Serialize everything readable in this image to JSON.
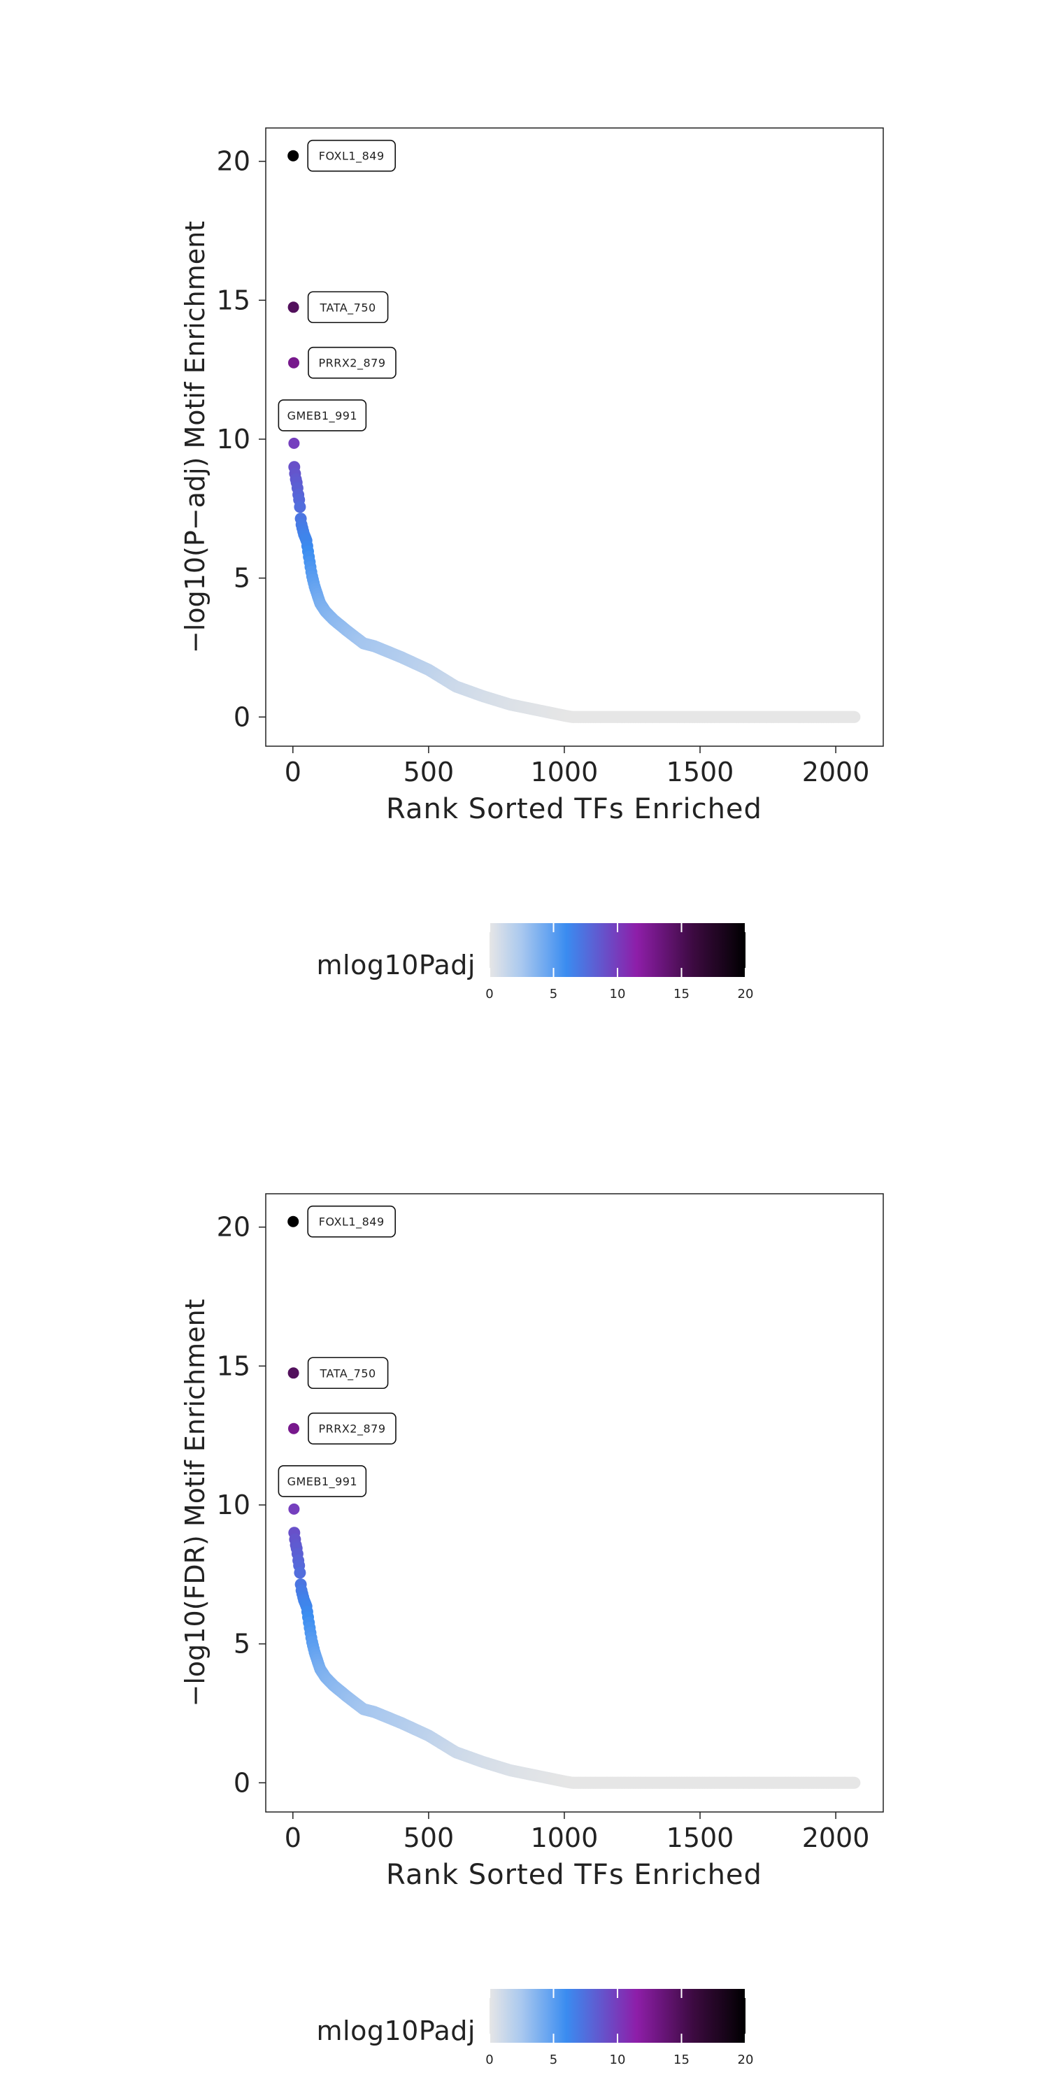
{
  "chart_data": [
    {
      "type": "scatter",
      "title": "",
      "xlabel": "Rank Sorted TFs Enriched",
      "ylabel": "−log10(P−adj) Motif Enrichment",
      "xlim": [
        -100,
        2175
      ],
      "ylim": [
        -1.05,
        21.2
      ],
      "xticks": [
        0,
        500,
        1000,
        1500,
        2000
      ],
      "yticks": [
        0,
        5,
        10,
        15,
        20
      ],
      "color_scale": {
        "label": "mlog10Padj",
        "ticks": [
          0,
          5,
          10,
          15,
          20
        ],
        "colors": [
          "#e6e6e6",
          "#a9c8ef",
          "#3a8cf0",
          "#8e1ea9",
          "#3b0a3f",
          "#000000"
        ]
      },
      "labeled_points": [
        {
          "label": "FOXL1_849",
          "rank": 1,
          "value": 20.2
        },
        {
          "label": "TATA_750",
          "rank": 2,
          "value": 14.75
        },
        {
          "label": "PRRX2_879",
          "rank": 3,
          "value": 12.75
        },
        {
          "label": "GMEB1_991",
          "rank": 4,
          "value": 9.85
        }
      ],
      "curve": {
        "ranks": [
          5,
          10,
          15,
          20,
          25,
          30,
          40,
          50,
          60,
          70,
          80,
          100,
          120,
          150,
          200,
          260,
          300,
          400,
          500,
          600,
          700,
          800,
          900,
          1000,
          1030,
          1500,
          2000,
          2070
        ],
        "values": [
          9.0,
          8.6,
          8.4,
          8.0,
          7.7,
          7.0,
          6.6,
          6.35,
          5.7,
          5.1,
          4.7,
          4.1,
          3.8,
          3.5,
          3.1,
          2.65,
          2.55,
          2.15,
          1.7,
          1.1,
          0.75,
          0.45,
          0.25,
          0.05,
          0.0,
          0.0,
          0.0,
          0.0
        ]
      }
    },
    {
      "type": "scatter",
      "title": "",
      "xlabel": "Rank Sorted TFs Enriched",
      "ylabel": "−log10(FDR) Motif Enrichment",
      "xlim": [
        -100,
        2175
      ],
      "ylim": [
        -1.05,
        21.2
      ],
      "xticks": [
        0,
        500,
        1000,
        1500,
        2000
      ],
      "yticks": [
        0,
        5,
        10,
        15,
        20
      ],
      "color_scale": {
        "label": "mlog10Padj",
        "ticks": [
          0,
          5,
          10,
          15,
          20
        ],
        "colors": [
          "#e6e6e6",
          "#a9c8ef",
          "#3a8cf0",
          "#8e1ea9",
          "#3b0a3f",
          "#000000"
        ]
      },
      "labeled_points": [
        {
          "label": "FOXL1_849",
          "rank": 1,
          "value": 20.2
        },
        {
          "label": "TATA_750",
          "rank": 2,
          "value": 14.75
        },
        {
          "label": "PRRX2_879",
          "rank": 3,
          "value": 12.75
        },
        {
          "label": "GMEB1_991",
          "rank": 4,
          "value": 9.85
        }
      ],
      "curve": {
        "ranks": [
          5,
          10,
          15,
          20,
          25,
          30,
          40,
          50,
          60,
          70,
          80,
          100,
          120,
          150,
          200,
          260,
          300,
          400,
          500,
          600,
          700,
          800,
          900,
          1000,
          1030,
          1500,
          2000,
          2070
        ],
        "values": [
          9.0,
          8.6,
          8.4,
          8.0,
          7.7,
          7.0,
          6.6,
          6.35,
          5.7,
          5.1,
          4.7,
          4.1,
          3.8,
          3.5,
          3.1,
          2.65,
          2.55,
          2.15,
          1.7,
          1.1,
          0.75,
          0.45,
          0.25,
          0.05,
          0.0,
          0.0,
          0.0,
          0.0
        ]
      }
    }
  ]
}
